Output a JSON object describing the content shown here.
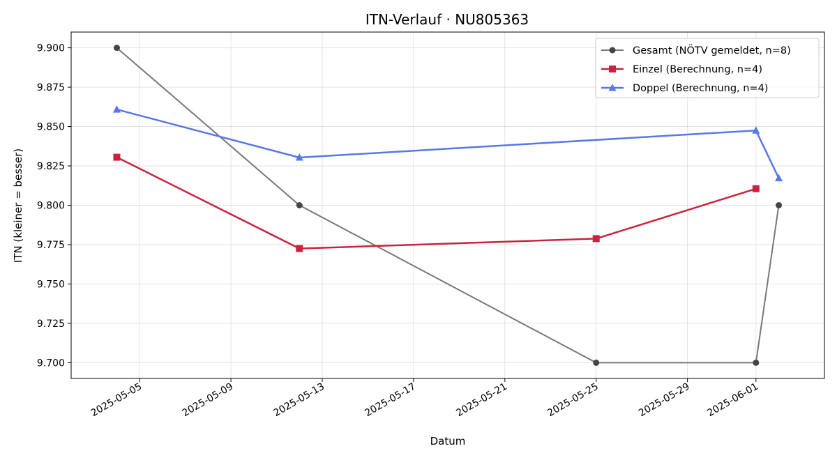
{
  "chart_data": {
    "type": "line",
    "title": "ITN-Verlauf · NU805363",
    "xlabel": "Datum",
    "ylabel": "ITN  (kleiner = besser)",
    "x_axis_type": "date",
    "xlim": [
      "2025-05-02",
      "2025-06-04"
    ],
    "ylim": [
      9.69,
      9.91
    ],
    "x_ticks": [
      "2025-05-05",
      "2025-05-09",
      "2025-05-13",
      "2025-05-17",
      "2025-05-21",
      "2025-05-25",
      "2025-05-29",
      "2025-06-01"
    ],
    "y_ticks": [
      "9.700",
      "9.725",
      "9.750",
      "9.775",
      "9.800",
      "9.825",
      "9.850",
      "9.875",
      "9.900"
    ],
    "grid": true,
    "legend_position": "top-right",
    "series": [
      {
        "name": "Gesamt (NÖTV gemeldet, n=8)",
        "color": "#777777",
        "marker_color": "#444444",
        "marker": "circle",
        "points": [
          {
            "x": "2025-05-04",
            "y": 9.9
          },
          {
            "x": "2025-05-12",
            "y": 9.8
          },
          {
            "x": "2025-05-25",
            "y": 9.7
          },
          {
            "x": "2025-06-01",
            "y": 9.7
          },
          {
            "x": "2025-06-02",
            "y": 9.8
          }
        ]
      },
      {
        "name": "Einzel (Berechnung, n=4)",
        "color": "#c8243f",
        "marker": "square",
        "points": [
          {
            "x": "2025-05-04",
            "y": 9.8305
          },
          {
            "x": "2025-05-12",
            "y": 9.7725
          },
          {
            "x": "2025-05-25",
            "y": 9.7788
          },
          {
            "x": "2025-06-01",
            "y": 9.8105
          }
        ]
      },
      {
        "name": "Doppel (Berechnung, n=4)",
        "color": "#5877e8",
        "marker": "triangle",
        "points": [
          {
            "x": "2025-05-04",
            "y": 9.8608
          },
          {
            "x": "2025-05-12",
            "y": 9.8303
          },
          {
            "x": "2025-06-01",
            "y": 9.8475
          },
          {
            "x": "2025-06-02",
            "y": 9.8172
          }
        ]
      }
    ]
  }
}
